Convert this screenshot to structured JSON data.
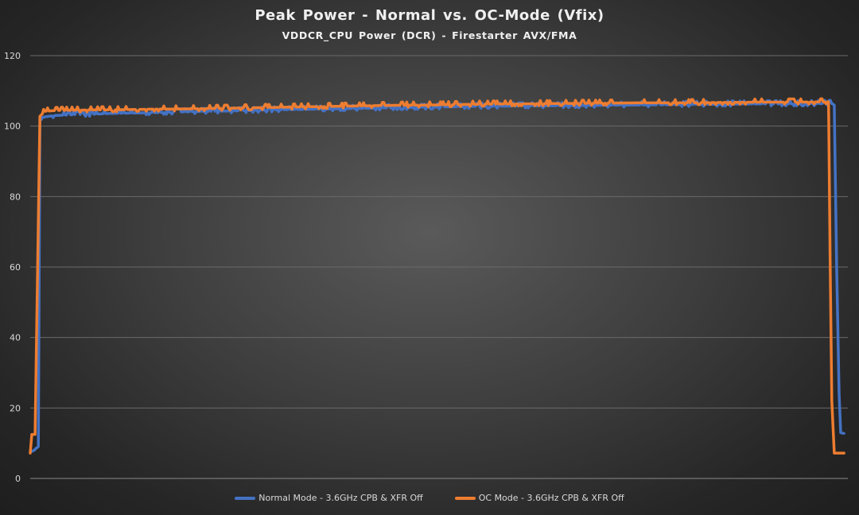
{
  "chart_data": {
    "type": "line",
    "title": "Peak Power - Normal  vs. OC-Mode  (Vfix)",
    "subtitle": "VDDCR_CPU Power (DCR) - Firestarter AVX/FMA",
    "xlabel": "",
    "ylabel": "",
    "ylim": [
      0,
      120
    ],
    "y_ticks": [
      "0",
      "20",
      "40",
      "60",
      "80",
      "100",
      "120"
    ],
    "grid": true,
    "legend_position": "bottom",
    "x_domain": [
      0,
      100
    ],
    "series": [
      {
        "name": "Normal Mode - 3.6GHz CPB & XFR Off",
        "color": "#4472c4",
        "points": [
          [
            0.0,
            7.5
          ],
          [
            0.5,
            8.0
          ],
          [
            0.7,
            8.5
          ],
          [
            1.0,
            9.0
          ],
          [
            1.2,
            102.3
          ],
          [
            2,
            102.7
          ],
          [
            3,
            103.0
          ],
          [
            5,
            103.2
          ],
          [
            8,
            103.4
          ],
          [
            10,
            103.6
          ],
          [
            15,
            103.8
          ],
          [
            20,
            104.1
          ],
          [
            25,
            104.3
          ],
          [
            30,
            104.6
          ],
          [
            35,
            104.8
          ],
          [
            40,
            105.0
          ],
          [
            45,
            105.2
          ],
          [
            50,
            105.4
          ],
          [
            55,
            105.6
          ],
          [
            60,
            105.7
          ],
          [
            65,
            105.8
          ],
          [
            70,
            105.9
          ],
          [
            75,
            106.0
          ],
          [
            80,
            106.1
          ],
          [
            85,
            106.2
          ],
          [
            90,
            106.3
          ],
          [
            95,
            106.3
          ],
          [
            99.0,
            106.4
          ],
          [
            99.3,
            106.0
          ],
          [
            99.6,
            60
          ],
          [
            99.9,
            24
          ],
          [
            100.1,
            13.0
          ],
          [
            100.5,
            12.8
          ]
        ]
      },
      {
        "name": "OC Mode - 3.6GHz CPB & XFR Off",
        "color": "#ed7d31",
        "points": [
          [
            0.0,
            7.2
          ],
          [
            0.2,
            12.5
          ],
          [
            0.6,
            12.5
          ],
          [
            1.2,
            102.8
          ],
          [
            1.8,
            104.2
          ],
          [
            3,
            104.4
          ],
          [
            5,
            104.5
          ],
          [
            8,
            104.6
          ],
          [
            10,
            104.6
          ],
          [
            15,
            104.8
          ],
          [
            20,
            104.9
          ],
          [
            25,
            105.1
          ],
          [
            30,
            105.3
          ],
          [
            35,
            105.5
          ],
          [
            40,
            105.7
          ],
          [
            45,
            105.9
          ],
          [
            50,
            106.0
          ],
          [
            55,
            106.2
          ],
          [
            60,
            106.3
          ],
          [
            65,
            106.4
          ],
          [
            70,
            106.5
          ],
          [
            75,
            106.6
          ],
          [
            80,
            106.6
          ],
          [
            85,
            106.7
          ],
          [
            90,
            106.8
          ],
          [
            95,
            106.8
          ],
          [
            98.6,
            106.9
          ],
          [
            98.8,
            60
          ],
          [
            99.0,
            22
          ],
          [
            99.3,
            7.2
          ],
          [
            100.5,
            7.2
          ]
        ]
      }
    ]
  }
}
